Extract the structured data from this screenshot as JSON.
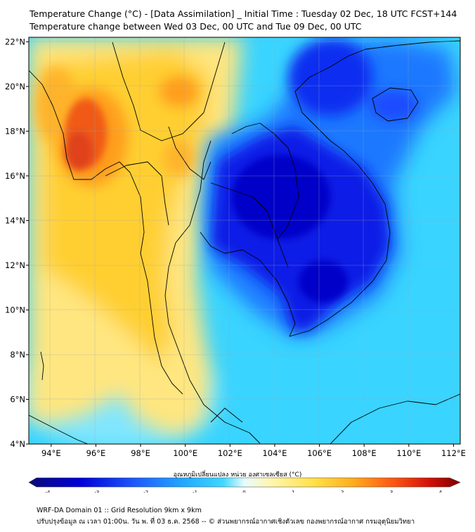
{
  "title": {
    "line1": "Temperature Change (°C) - [Data Assimilation] _ Initial Time : Tuesday 02 Dec, 18 UTC FCST+144",
    "line2": "Temperature change between Wed 03 Dec, 00 UTC and Tue 09 Dec, 00 UTC"
  },
  "axes": {
    "x_ticks": [
      "94°E",
      "96°E",
      "98°E",
      "100°E",
      "102°E",
      "104°E",
      "106°E",
      "108°E",
      "110°E",
      "112°E"
    ],
    "y_ticks": [
      "22°N",
      "20°N",
      "18°N",
      "16°N",
      "14°N",
      "12°N",
      "10°N",
      "8°N",
      "6°N",
      "4°N"
    ],
    "lon_range": [
      93,
      112.3
    ],
    "lat_range": [
      4,
      22.2
    ]
  },
  "colorbar": {
    "title": "อุณหภูมิเปลี่ยนแปลง หน่วย องศาเซลเซียส (°C)",
    "ticks": [
      "-4",
      "-3",
      "-2",
      "-1",
      "0",
      "1",
      "2",
      "3",
      "4"
    ],
    "range": [
      -4,
      4
    ],
    "colors": [
      "#0a0a7a",
      "#0000d8",
      "#1e5cff",
      "#22aaff",
      "#3fd8ff",
      "#c8f4ff",
      "#fff7b0",
      "#ffe14a",
      "#ffae1e",
      "#ff5a14",
      "#d21008",
      "#7a0000"
    ]
  },
  "footer": {
    "line1": "WRF-DA Domain 01 :: Grid Resolution 9km x 9km",
    "line2": "ปรับปรุงข้อมูล ณ เวลา 01:00น. วัน พ. ที่ 03 ธ.ค. 2568 -- © ส่วนพยากรณ์อากาศเชิงตัวเลข กองพยากรณ์อากาศ กรมอุตุนิยมวิทยา"
  },
  "colors": {
    "background_field": "#39d4ff",
    "strong_cooling": "#0000e0",
    "moderate_cooling": "#1a6cff",
    "warming": "#ffd23a",
    "strong_warming": "#e8401a",
    "land_border": "#000000"
  }
}
